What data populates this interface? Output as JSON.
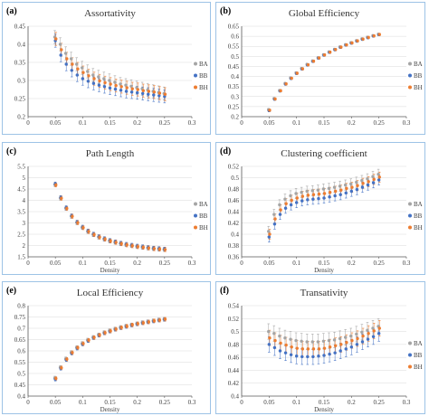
{
  "colors": {
    "BA": "#a5a5a5",
    "BB": "#4472c4",
    "BH": "#ed7d31",
    "axis": "#595959",
    "grid": "#d9d9d9",
    "border": "#9dc3e6"
  },
  "chart_data": [
    {
      "panel": "(a)",
      "type": "scatter",
      "title": "Assortativity",
      "xlabel": "",
      "ylabel": "",
      "xlim": [
        0,
        0.3
      ],
      "ylim": [
        0.2,
        0.45
      ],
      "xticks": [
        "0",
        "0.05",
        "0.1",
        "0.15",
        "0.2",
        "0.25",
        "0.3"
      ],
      "yticks": [
        "0.2",
        "0.25",
        "0.3",
        "0.35",
        "0.4",
        "0.45"
      ],
      "x": [
        0.05,
        0.06,
        0.07,
        0.08,
        0.09,
        0.1,
        0.11,
        0.12,
        0.13,
        0.14,
        0.15,
        0.16,
        0.17,
        0.18,
        0.19,
        0.2,
        0.21,
        0.22,
        0.23,
        0.24,
        0.25
      ],
      "series": [
        {
          "name": "BA",
          "values": [
            0.42,
            0.4,
            0.375,
            0.36,
            0.345,
            0.335,
            0.325,
            0.315,
            0.31,
            0.305,
            0.3,
            0.295,
            0.29,
            0.287,
            0.284,
            0.28,
            0.277,
            0.274,
            0.27,
            0.267,
            0.264
          ]
        },
        {
          "name": "BB",
          "values": [
            0.41,
            0.37,
            0.345,
            0.328,
            0.315,
            0.305,
            0.298,
            0.292,
            0.287,
            0.283,
            0.279,
            0.276,
            0.273,
            0.27,
            0.268,
            0.266,
            0.264,
            0.262,
            0.26,
            0.258,
            0.256
          ]
        },
        {
          "name": "BH",
          "values": [
            0.415,
            0.385,
            0.36,
            0.345,
            0.332,
            0.322,
            0.313,
            0.305,
            0.299,
            0.294,
            0.29,
            0.286,
            0.283,
            0.28,
            0.277,
            0.275,
            0.272,
            0.27,
            0.268,
            0.265,
            0.262
          ]
        }
      ],
      "legend": [
        "BA",
        "BB",
        "BH"
      ],
      "legend_position": "right"
    },
    {
      "panel": "(b)",
      "type": "scatter",
      "title": "Global Efficiency",
      "xlabel": "",
      "ylabel": "",
      "xlim": [
        0,
        0.3
      ],
      "ylim": [
        0.2,
        0.65
      ],
      "xticks": [
        "0",
        "0.05",
        "0.1",
        "0.15",
        "0.2",
        "0.25",
        "0.3"
      ],
      "yticks": [
        "0.2",
        "0.25",
        "0.3",
        "0.35",
        "0.4",
        "0.45",
        "0.5",
        "0.55",
        "0.6",
        "0.65"
      ],
      "x": [
        0.05,
        0.06,
        0.07,
        0.08,
        0.09,
        0.1,
        0.11,
        0.12,
        0.13,
        0.14,
        0.15,
        0.16,
        0.17,
        0.18,
        0.19,
        0.2,
        0.21,
        0.22,
        0.23,
        0.24,
        0.25
      ],
      "series": [
        {
          "name": "BA",
          "values": [
            0.235,
            0.29,
            0.33,
            0.365,
            0.393,
            0.418,
            0.44,
            0.46,
            0.477,
            0.493,
            0.508,
            0.522,
            0.535,
            0.547,
            0.558,
            0.568,
            0.578,
            0.587,
            0.595,
            0.603,
            0.61
          ]
        },
        {
          "name": "BB",
          "values": [
            0.23,
            0.287,
            0.328,
            0.362,
            0.39,
            0.415,
            0.437,
            0.457,
            0.475,
            0.491,
            0.506,
            0.52,
            0.533,
            0.545,
            0.556,
            0.566,
            0.576,
            0.585,
            0.593,
            0.601,
            0.608
          ]
        },
        {
          "name": "BH",
          "values": [
            0.232,
            0.288,
            0.329,
            0.363,
            0.391,
            0.416,
            0.438,
            0.458,
            0.476,
            0.492,
            0.507,
            0.521,
            0.534,
            0.546,
            0.557,
            0.567,
            0.577,
            0.586,
            0.594,
            0.602,
            0.609
          ]
        }
      ],
      "legend": [
        "BA",
        "BB",
        "BH"
      ],
      "legend_position": "right"
    },
    {
      "panel": "(c)",
      "type": "scatter",
      "title": "Path Length",
      "xlabel": "Density",
      "ylabel": "",
      "xlim": [
        0,
        0.3
      ],
      "ylim": [
        1.5,
        5.5
      ],
      "xticks": [
        "0",
        "0.05",
        "0.1",
        "0.15",
        "0.2",
        "0.25",
        "0.3"
      ],
      "yticks": [
        "1.5",
        "2",
        "2.5",
        "3",
        "3.5",
        "4",
        "4.5",
        "5",
        "5.5"
      ],
      "x": [
        0.05,
        0.06,
        0.07,
        0.08,
        0.09,
        0.1,
        0.11,
        0.12,
        0.13,
        0.14,
        0.15,
        0.16,
        0.17,
        0.18,
        0.19,
        0.2,
        0.21,
        0.22,
        0.23,
        0.24,
        0.25
      ],
      "series": [
        {
          "name": "BA",
          "values": [
            4.7,
            4.1,
            3.65,
            3.3,
            3.02,
            2.8,
            2.63,
            2.49,
            2.38,
            2.29,
            2.21,
            2.15,
            2.09,
            2.04,
            2.0,
            1.96,
            1.93,
            1.9,
            1.87,
            1.85,
            1.83
          ]
        },
        {
          "name": "BB",
          "values": [
            4.72,
            4.12,
            3.67,
            3.31,
            3.03,
            2.81,
            2.64,
            2.5,
            2.39,
            2.3,
            2.22,
            2.16,
            2.1,
            2.05,
            2.01,
            1.97,
            1.94,
            1.91,
            1.88,
            1.86,
            1.84
          ]
        },
        {
          "name": "BH",
          "values": [
            4.68,
            4.09,
            3.64,
            3.29,
            3.01,
            2.79,
            2.62,
            2.48,
            2.37,
            2.28,
            2.2,
            2.14,
            2.08,
            2.03,
            1.99,
            1.95,
            1.92,
            1.89,
            1.86,
            1.84,
            1.82
          ]
        }
      ],
      "legend": [
        "BA",
        "BB",
        "BH"
      ],
      "legend_position": "right"
    },
    {
      "panel": "(d)",
      "type": "scatter",
      "title": "Clustering coefficient",
      "xlabel": "Density",
      "ylabel": "",
      "xlim": [
        0,
        0.3
      ],
      "ylim": [
        0.36,
        0.52
      ],
      "xticks": [
        "0",
        "0.05",
        "0.1",
        "0.15",
        "0.2",
        "0.25",
        "0.3"
      ],
      "yticks": [
        "0.36",
        "0.38",
        "0.4",
        "0.42",
        "0.44",
        "0.46",
        "0.48",
        "0.5",
        "0.52"
      ],
      "x": [
        0.05,
        0.06,
        0.07,
        0.08,
        0.09,
        0.1,
        0.11,
        0.12,
        0.13,
        0.14,
        0.15,
        0.16,
        0.17,
        0.18,
        0.19,
        0.2,
        0.21,
        0.22,
        0.23,
        0.24,
        0.25
      ],
      "series": [
        {
          "name": "BA",
          "values": [
            0.405,
            0.435,
            0.452,
            0.462,
            0.468,
            0.472,
            0.474,
            0.476,
            0.477,
            0.478,
            0.48,
            0.481,
            0.483,
            0.485,
            0.487,
            0.489,
            0.492,
            0.495,
            0.498,
            0.502,
            0.506
          ]
        },
        {
          "name": "BB",
          "values": [
            0.395,
            0.418,
            0.435,
            0.446,
            0.452,
            0.456,
            0.459,
            0.461,
            0.462,
            0.463,
            0.464,
            0.466,
            0.468,
            0.47,
            0.473,
            0.476,
            0.479,
            0.483,
            0.487,
            0.491,
            0.496
          ]
        },
        {
          "name": "BH",
          "values": [
            0.4,
            0.427,
            0.443,
            0.454,
            0.46,
            0.464,
            0.467,
            0.469,
            0.47,
            0.471,
            0.472,
            0.474,
            0.476,
            0.478,
            0.481,
            0.483,
            0.486,
            0.49,
            0.493,
            0.497,
            0.501
          ]
        }
      ],
      "legend": [
        "BA",
        "BB",
        "BH"
      ],
      "legend_position": "right"
    },
    {
      "panel": "(e)",
      "type": "scatter",
      "title": "Local Efficiency",
      "xlabel": "Density",
      "ylabel": "",
      "xlim": [
        0,
        0.3
      ],
      "ylim": [
        0.4,
        0.8
      ],
      "xticks": [
        "0",
        "0.05",
        "0.1",
        "0.15",
        "0.2",
        "0.25",
        "0.3"
      ],
      "yticks": [
        "0.4",
        "0.45",
        "0.5",
        "0.55",
        "0.6",
        "0.65",
        "0.7",
        "0.75",
        "0.8"
      ],
      "x": [
        0.05,
        0.06,
        0.07,
        0.08,
        0.09,
        0.1,
        0.11,
        0.12,
        0.13,
        0.14,
        0.15,
        0.16,
        0.17,
        0.18,
        0.19,
        0.2,
        0.21,
        0.22,
        0.23,
        0.24,
        0.25
      ],
      "series": [
        {
          "name": "BA",
          "values": [
            0.48,
            0.527,
            0.565,
            0.593,
            0.615,
            0.633,
            0.648,
            0.66,
            0.671,
            0.681,
            0.689,
            0.697,
            0.704,
            0.71,
            0.715,
            0.72,
            0.725,
            0.729,
            0.733,
            0.737,
            0.74
          ]
        },
        {
          "name": "BB",
          "values": [
            0.475,
            0.523,
            0.561,
            0.59,
            0.612,
            0.63,
            0.645,
            0.658,
            0.669,
            0.679,
            0.687,
            0.695,
            0.702,
            0.708,
            0.714,
            0.719,
            0.724,
            0.728,
            0.732,
            0.736,
            0.739
          ]
        },
        {
          "name": "BH",
          "values": [
            0.478,
            0.525,
            0.563,
            0.592,
            0.614,
            0.632,
            0.647,
            0.659,
            0.67,
            0.68,
            0.688,
            0.696,
            0.703,
            0.709,
            0.715,
            0.72,
            0.724,
            0.728,
            0.733,
            0.736,
            0.74
          ]
        }
      ],
      "legend": [],
      "legend_position": ""
    },
    {
      "panel": "(f)",
      "type": "scatter",
      "title": "Transativity",
      "xlabel": "Density",
      "ylabel": "",
      "xlim": [
        0,
        0.3
      ],
      "ylim": [
        0.4,
        0.54
      ],
      "xticks": [
        "0",
        "0.05",
        "0.1",
        "0.15",
        "0.2",
        "0.25",
        "0.3"
      ],
      "yticks": [
        "0.4",
        "0.42",
        "0.44",
        "0.46",
        "0.48",
        "0.5",
        "0.52",
        "0.54"
      ],
      "x": [
        0.05,
        0.06,
        0.07,
        0.08,
        0.09,
        0.1,
        0.11,
        0.12,
        0.13,
        0.14,
        0.15,
        0.16,
        0.17,
        0.18,
        0.19,
        0.2,
        0.21,
        0.22,
        0.23,
        0.24,
        0.25
      ],
      "series": [
        {
          "name": "BA",
          "values": [
            0.5,
            0.497,
            0.493,
            0.49,
            0.488,
            0.486,
            0.485,
            0.484,
            0.484,
            0.484,
            0.485,
            0.486,
            0.487,
            0.489,
            0.491,
            0.493,
            0.496,
            0.499,
            0.502,
            0.505,
            0.508
          ]
        },
        {
          "name": "BB",
          "values": [
            0.48,
            0.475,
            0.47,
            0.467,
            0.464,
            0.462,
            0.461,
            0.461,
            0.461,
            0.462,
            0.463,
            0.465,
            0.467,
            0.47,
            0.473,
            0.476,
            0.48,
            0.484,
            0.488,
            0.492,
            0.497
          ]
        },
        {
          "name": "BH",
          "values": [
            0.49,
            0.486,
            0.482,
            0.479,
            0.476,
            0.474,
            0.473,
            0.473,
            0.473,
            0.473,
            0.474,
            0.476,
            0.478,
            0.48,
            0.483,
            0.486,
            0.489,
            0.493,
            0.497,
            0.501,
            0.505
          ]
        }
      ],
      "legend": [
        "BA",
        "BB",
        "BH"
      ],
      "legend_position": "right"
    }
  ]
}
